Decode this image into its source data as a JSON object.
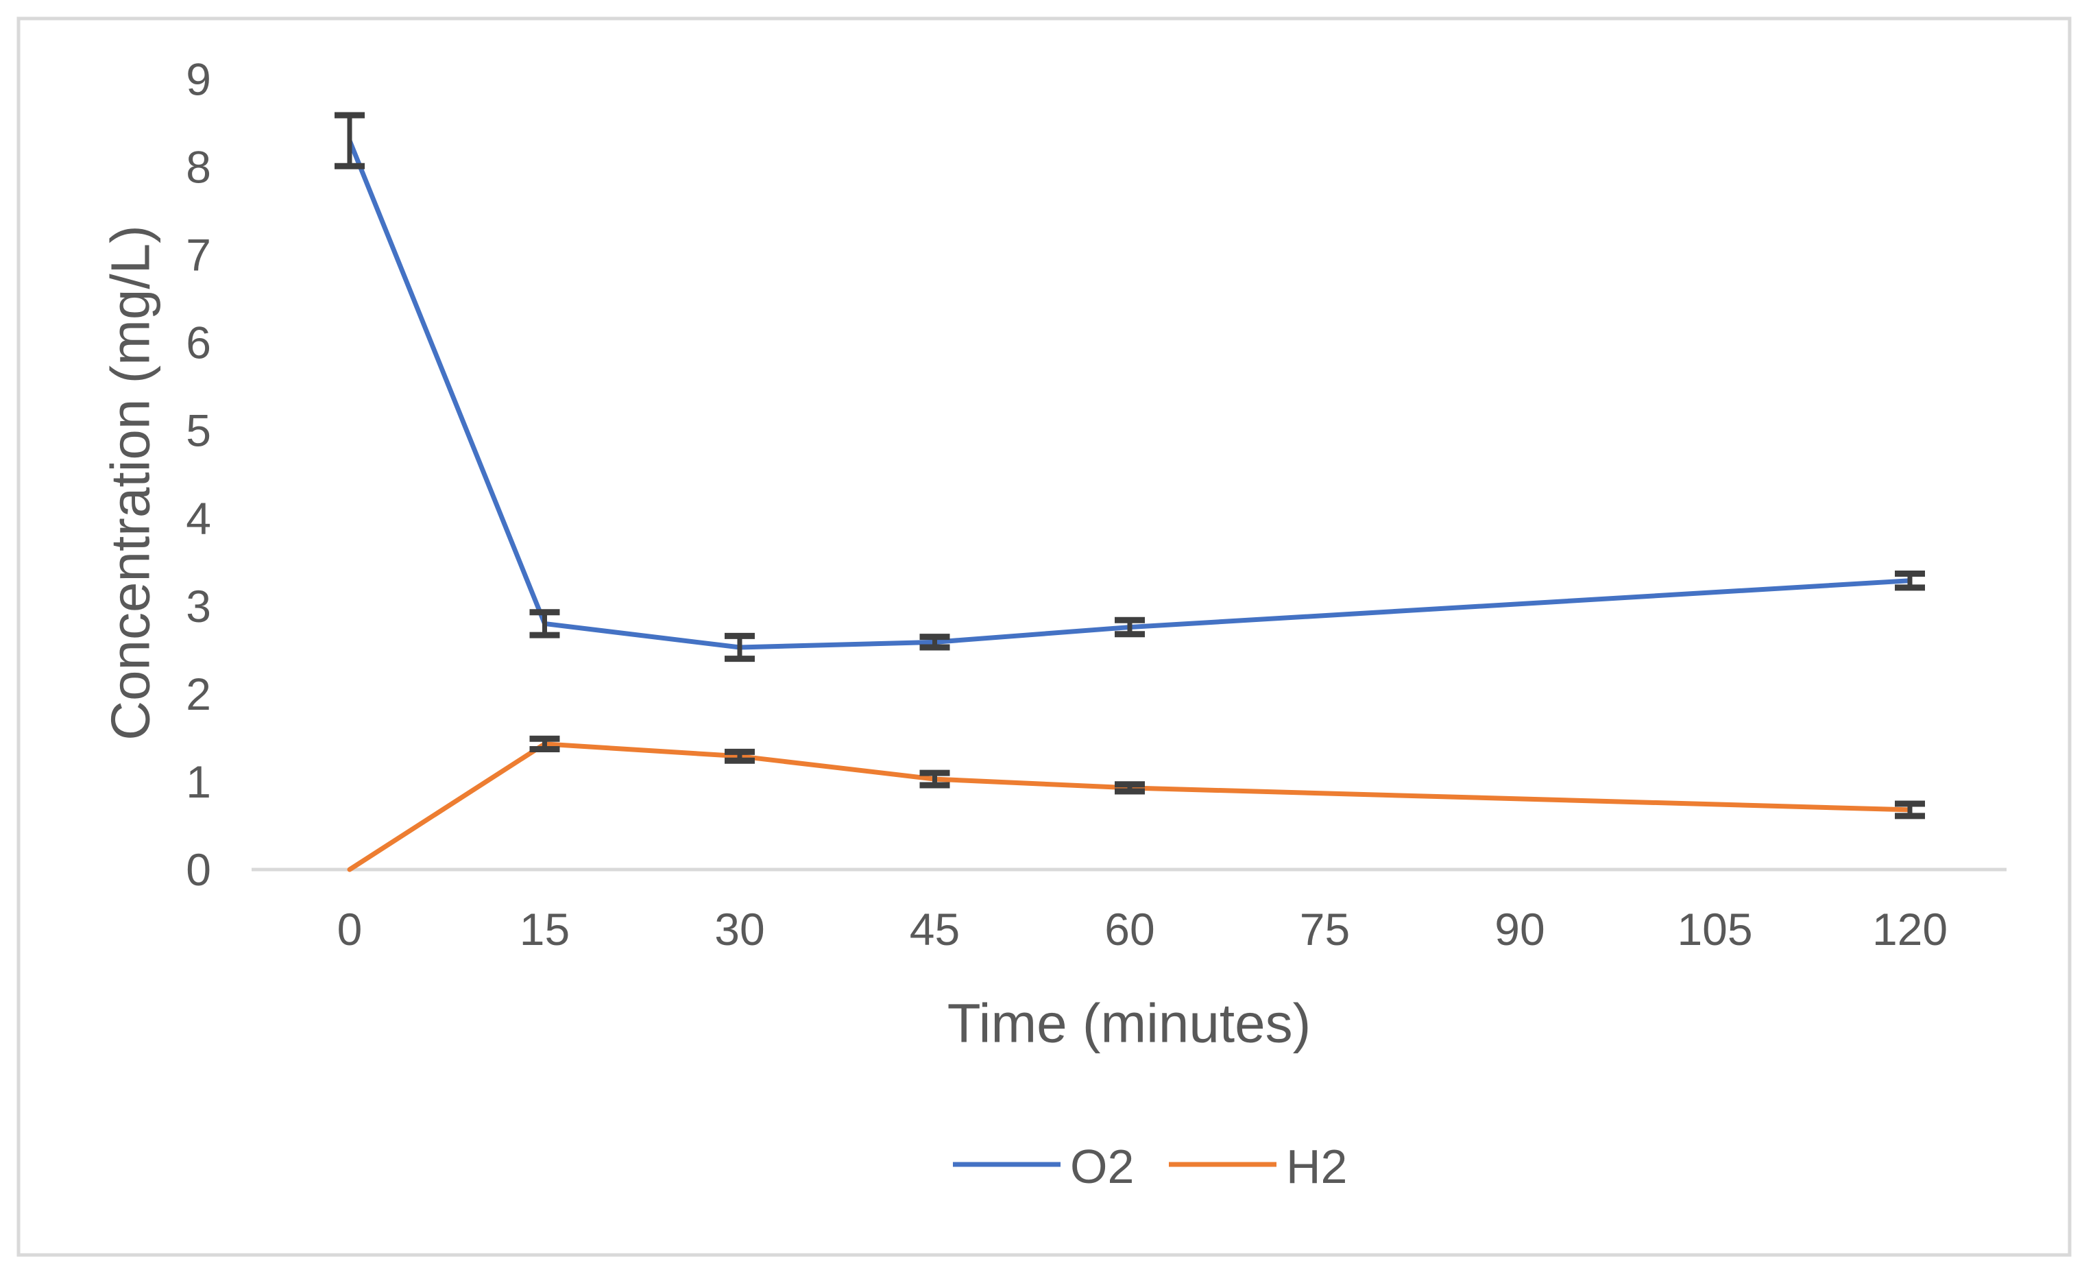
{
  "chart_data": {
    "type": "line",
    "title": "",
    "xlabel": "Time (minutes)",
    "ylabel": "Concentration (mg/L)",
    "x_tick_values": [
      0,
      15,
      30,
      45,
      60,
      75,
      90,
      105,
      120
    ],
    "x_tick_labels": [
      "0",
      "15",
      "30",
      "45",
      "60",
      "75",
      "90",
      "105",
      "120"
    ],
    "y_tick_values": [
      0,
      1,
      2,
      3,
      4,
      5,
      6,
      7,
      8,
      9
    ],
    "y_tick_labels": [
      "0",
      "1",
      "2",
      "3",
      "4",
      "5",
      "6",
      "7",
      "8",
      "9"
    ],
    "ylim": [
      0,
      9
    ],
    "grid": false,
    "legend_position": "bottom-center",
    "error_bars": true,
    "series": [
      {
        "name": "O2",
        "color": "#4472C4",
        "x": [
          0,
          15,
          30,
          45,
          60,
          120
        ],
        "values": [
          8.3,
          2.8,
          2.53,
          2.59,
          2.76,
          3.29
        ],
        "yerr": [
          0.29,
          0.13,
          0.13,
          0.06,
          0.08,
          0.08
        ]
      },
      {
        "name": "H2",
        "color": "#ED7D31",
        "x": [
          0,
          15,
          30,
          45,
          60,
          120
        ],
        "values": [
          0,
          1.43,
          1.29,
          1.03,
          0.93,
          0.68
        ],
        "yerr": [
          0,
          0.06,
          0.05,
          0.07,
          0.04,
          0.07
        ]
      }
    ],
    "colors": {
      "error_bar": "#3F3F3F",
      "axis_line": "#D9D9D9",
      "text": "#595959",
      "border": "#D9D9D9",
      "background": "#FFFFFF"
    }
  },
  "legend": {
    "items": [
      {
        "label": "O2"
      },
      {
        "label": "H2"
      }
    ]
  }
}
